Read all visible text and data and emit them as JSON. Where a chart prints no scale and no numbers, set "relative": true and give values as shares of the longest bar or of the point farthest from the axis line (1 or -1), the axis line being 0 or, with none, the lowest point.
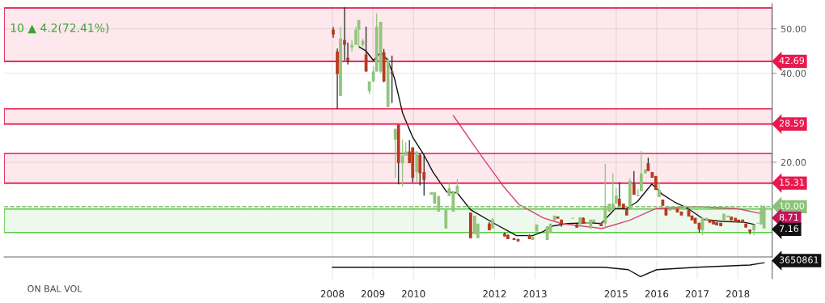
{
  "chart_data": [
    {
      "type": "candlestick",
      "subtitle": "10 ▲ 4.2(72.41%)",
      "x": [
        2008.02,
        2008.12,
        2008.2,
        2008.3,
        2008.38,
        2008.48,
        2008.58,
        2008.65,
        2008.75,
        2008.83,
        2008.91,
        2009.01,
        2009.09,
        2009.19,
        2009.27,
        2009.37,
        2009.47,
        2009.55,
        2009.63,
        2009.73,
        2009.81,
        2009.9,
        2009.98,
        2010.08,
        2010.16,
        2010.26,
        2010.44,
        2010.52,
        2010.62,
        2010.8,
        2010.88,
        2010.98,
        2011.08,
        2011.41,
        2011.51,
        2011.59,
        2011.87,
        2011.95,
        2012.25,
        2012.33,
        2012.48,
        2012.58,
        2012.86,
        2012.94,
        2013.04,
        2013.3,
        2013.38,
        2013.48,
        2013.56,
        2013.65,
        2013.93,
        2014.03,
        2014.11,
        2014.19,
        2014.29,
        2014.37,
        2014.45,
        2014.63,
        2014.73,
        2014.83,
        2014.92,
        2015.0,
        2015.08,
        2015.18,
        2015.26,
        2015.34,
        2015.44,
        2015.54,
        2015.62,
        2015.72,
        2015.79,
        2015.89,
        2015.98,
        2016.06,
        2016.15,
        2016.23,
        2016.33,
        2016.51,
        2016.61,
        2016.69,
        2016.79,
        2016.87,
        2016.95,
        2017.05,
        2017.13,
        2017.23,
        2017.31,
        2017.4,
        2017.48,
        2017.58,
        2017.66,
        2017.76,
        2017.84,
        2017.94,
        2018.02,
        2018.12,
        2018.2,
        2018.3,
        2018.4,
        2018.5,
        2018.58,
        2018.65
      ],
      "ohlc": [
        [
          49.8,
          50.4,
          48,
          48.7
        ],
        [
          44.9,
          45.6,
          32,
          39.8
        ],
        [
          34.9,
          50.5,
          34.9,
          47.8
        ],
        [
          47.5,
          54.9,
          42.9,
          46.4
        ],
        [
          43.5,
          46.9,
          42,
          42.9
        ],
        [
          45.8,
          47.5,
          44.9,
          46.4
        ],
        [
          46.4,
          50.5,
          46.4,
          49.8
        ],
        [
          49.8,
          52,
          45.6,
          52
        ],
        [
          46.4,
          47.8,
          46,
          47.3
        ],
        [
          44.2,
          50.5,
          40.4,
          40.4
        ],
        [
          36,
          38.2,
          35.3,
          38.2
        ],
        [
          38.2,
          41.5,
          38,
          40.4
        ],
        [
          40.4,
          53.5,
          40.4,
          50.5
        ],
        [
          40.4,
          51.6,
          40,
          51.6
        ],
        [
          44.7,
          45.5,
          38,
          38.2
        ],
        [
          32.4,
          43.5,
          32.4,
          42.9
        ],
        [
          40.4,
          44,
          33.3,
          39.8
        ],
        [
          25.1,
          27.5,
          16.5,
          27.5
        ],
        [
          28.4,
          28.4,
          15,
          19.8
        ],
        [
          19.8,
          25.1,
          14.5,
          21.5
        ],
        [
          21.5,
          24.5,
          21.5,
          22.4
        ],
        [
          22.4,
          25,
          19.8,
          19.8
        ],
        [
          23.3,
          23.3,
          15.5,
          16.5
        ],
        [
          17.8,
          22.4,
          15.6,
          22.4
        ],
        [
          21.6,
          22,
          14.8,
          17.5
        ],
        [
          17.8,
          21.6,
          12.5,
          16
        ],
        [
          12.7,
          13.3,
          12.7,
          13.3
        ],
        [
          10.7,
          13.3,
          10.7,
          13.3
        ],
        [
          8.9,
          12.4,
          8.9,
          12.4
        ],
        [
          5.1,
          9.3,
          5.1,
          9.3
        ],
        [
          12.4,
          15.3,
          12.4,
          14.2
        ],
        [
          8.9,
          13.5,
          8.9,
          13.5
        ],
        [
          12.9,
          16.2,
          12.9,
          14.7
        ],
        [
          8.7,
          8.7,
          2.9,
          2.9
        ],
        [
          3.8,
          8,
          3.8,
          8
        ],
        [
          2.9,
          6.2,
          2.9,
          6.2
        ],
        [
          6.2,
          6.5,
          4.7,
          4.7
        ],
        [
          5.1,
          7.5,
          5.1,
          7.1
        ],
        [
          4,
          4.2,
          3.3,
          3.3
        ],
        [
          3.6,
          3.8,
          2.7,
          2.7
        ],
        [
          2.9,
          3,
          2.5,
          2.5
        ],
        [
          2.7,
          2.8,
          2.2,
          2.2
        ],
        [
          3.6,
          3.8,
          2.7,
          2.7
        ],
        [
          2.5,
          3.3,
          2.5,
          3.3
        ],
        [
          4.4,
          6,
          4.4,
          6
        ],
        [
          2.5,
          5.6,
          2.5,
          5.6
        ],
        [
          4.2,
          6.2,
          4.2,
          6.2
        ],
        [
          6.9,
          8,
          6.9,
          8
        ],
        [
          7.8,
          7.8,
          7.3,
          7.3
        ],
        [
          7.1,
          7.1,
          5.5,
          6
        ],
        [
          7.3,
          7.5,
          7.3,
          7.5
        ],
        [
          6,
          6.2,
          5.3,
          5.3
        ],
        [
          6,
          7.6,
          6,
          7.6
        ],
        [
          7.5,
          7.6,
          6.2,
          6.2
        ],
        [
          6.2,
          6.5,
          6.2,
          6.5
        ],
        [
          5.1,
          7.1,
          5.1,
          7.1
        ],
        [
          6.5,
          7.1,
          6.5,
          7.1
        ],
        [
          6.4,
          6.4,
          5.6,
          5.6
        ],
        [
          6.2,
          19.6,
          5.1,
          10.2
        ],
        [
          8.9,
          10.7,
          8.9,
          10.7
        ],
        [
          9.3,
          17.5,
          9.3,
          10.7
        ],
        [
          10.7,
          14.2,
          10.7,
          12.5
        ],
        [
          11.8,
          15.5,
          10.2,
          10.2
        ],
        [
          10.7,
          10.7,
          9.6,
          9.6
        ],
        [
          9.5,
          9.5,
          8,
          8
        ],
        [
          9.3,
          16.4,
          9.3,
          15.8
        ],
        [
          15.1,
          18,
          12.7,
          12.7
        ],
        [
          12.4,
          14,
          12.4,
          12.7
        ],
        [
          13.5,
          22.5,
          13.5,
          17.5
        ],
        [
          17.5,
          18.4,
          17.5,
          18.4
        ],
        [
          19.8,
          21,
          18,
          18
        ],
        [
          17.8,
          17.8,
          16.5,
          16.5
        ],
        [
          16.9,
          16.9,
          13.8,
          13.8
        ],
        [
          12.2,
          15.5,
          12.2,
          13.8
        ],
        [
          11.6,
          11.6,
          10.2,
          10.2
        ],
        [
          9.6,
          9.6,
          8,
          8
        ],
        [
          9.1,
          9.6,
          9.1,
          9.6
        ],
        [
          9.6,
          9.6,
          8.7,
          8.7
        ],
        [
          8.9,
          8.9,
          8,
          8
        ],
        [
          9.3,
          10.2,
          9.3,
          10.2
        ],
        [
          9.3,
          9.3,
          7.8,
          7.8
        ],
        [
          8,
          8,
          6.9,
          6.9
        ],
        [
          7.5,
          7.5,
          6.2,
          6.2
        ],
        [
          6.4,
          6.4,
          4.2,
          4.9
        ],
        [
          4.7,
          7.5,
          3.6,
          7.5
        ],
        [
          6.9,
          7.5,
          6.9,
          7.5
        ],
        [
          7.1,
          7.1,
          6.4,
          6.4
        ],
        [
          6.9,
          6.9,
          6,
          6
        ],
        [
          6.5,
          6.5,
          5.8,
          5.8
        ],
        [
          6.4,
          6.4,
          5.6,
          5.6
        ],
        [
          6.9,
          8.4,
          6.9,
          8.4
        ],
        [
          7.6,
          8,
          7.6,
          8
        ],
        [
          7.8,
          7.8,
          6.9,
          6.9
        ],
        [
          7.5,
          7.5,
          6.5,
          6.5
        ],
        [
          7.1,
          7.1,
          6.7,
          6.7
        ],
        [
          7.1,
          7.1,
          6.4,
          6.4
        ],
        [
          6.2,
          6.2,
          5.3,
          5.3
        ],
        [
          4.9,
          4.9,
          3.8,
          4.4
        ],
        [
          4.7,
          6,
          3.6,
          6
        ],
        [
          6.2,
          6.4,
          6.2,
          6.4
        ],
        [
          6,
          10.4,
          6,
          9.8
        ],
        [
          5.1,
          10.4,
          5.1,
          10
        ]
      ],
      "series": [
        {
          "type": "line",
          "color": "#111111",
          "x": [
            2008.65,
            2008.83,
            2009.01,
            2009.19,
            2009.37,
            2009.53,
            2009.73,
            2009.98,
            2010.26,
            2010.48,
            2010.82,
            2011.08,
            2011.41,
            2012.0,
            2012.54,
            2012.94,
            2013.2,
            2013.4,
            2013.79,
            2014.33,
            2014.63,
            2014.98,
            2015.24,
            2015.52,
            2015.88,
            2016.12,
            2016.43,
            2016.77,
            2017.17,
            2017.62,
            2018.16,
            2018.42
          ],
          "values": [
            46,
            45,
            42.9,
            44.7,
            42.9,
            38.9,
            31.1,
            25.6,
            21.6,
            17.8,
            13.3,
            13.1,
            9.3,
            6.2,
            3.5,
            3.5,
            4.4,
            5.6,
            6.2,
            6.4,
            6.2,
            9.6,
            9.5,
            11.1,
            15.1,
            12.9,
            11.1,
            9.6,
            7.1,
            6.7,
            6.5,
            6.0
          ]
        },
        {
          "type": "line",
          "color": "#d6457a",
          "x": [
            2010.98,
            2011.67,
            2012.21,
            2012.6,
            2013.2,
            2013.65,
            2014.65,
            2015.32,
            2015.98,
            2016.97,
            2017.96,
            2018.61
          ],
          "values": [
            30.5,
            21.5,
            14.7,
            10.5,
            7.5,
            6.2,
            5.1,
            6.9,
            9.6,
            10.0,
            9.6,
            8.4
          ]
        }
      ],
      "xlim": [
        1999.9,
        2018.85
      ],
      "xticks": [
        2008,
        2009,
        2010,
        2012,
        2013,
        2015,
        2016,
        2017,
        2018
      ],
      "ylim": [
        -1.3,
        55.6
      ],
      "yticks": [
        {
          "value": 20,
          "label": "20.00"
        },
        {
          "value": 40,
          "label": "40.00"
        },
        {
          "value": 50,
          "label": "50.00"
        }
      ],
      "ref_lines": [
        {
          "axis": "y",
          "value": 42.69,
          "label": "42.69",
          "color": "#e8194f"
        },
        {
          "axis": "y",
          "value": 28.59,
          "label": "28.59",
          "color": "#e8194f"
        },
        {
          "axis": "y",
          "value": 15.31,
          "label": "15.31",
          "color": "#e8194f"
        },
        {
          "axis": "y",
          "value": 10,
          "label": "10.00",
          "color": "#8cc17a",
          "line_style": "dashed"
        }
      ],
      "bands": [
        {
          "axis": "y",
          "from": 42.69,
          "to": 54.7,
          "color": "#e8194f"
        },
        {
          "axis": "y",
          "from": 28.59,
          "to": 32,
          "color": "#e8194f"
        },
        {
          "axis": "y",
          "from": 15.31,
          "to": 22,
          "color": "#e8194f"
        },
        {
          "axis": "y",
          "from": 4.2,
          "to": 9.5,
          "color": "#5cc94a"
        }
      ],
      "annotations": [
        "8.71",
        "7.16"
      ],
      "grid": true,
      "tick_labels": "y"
    },
    {
      "type": "line",
      "title": "ON BAL VOL",
      "relative": true,
      "x": [
        2008,
        2010,
        2014.7,
        2015.3,
        2015.6,
        2016.0,
        2017,
        2018.3,
        2018.65
      ],
      "values": [
        0.67,
        0.67,
        0.67,
        0.5,
        0,
        0.5,
        0.67,
        0.83,
        1
      ],
      "color": "#111111",
      "xlim": [
        1999.9,
        2018.85
      ],
      "xticks": [
        2008,
        2009,
        2010,
        2012,
        2013,
        2015,
        2016,
        2017,
        2018
      ],
      "annotations": [
        "3650861"
      ],
      "grid": "x",
      "tick_labels": "x"
    }
  ]
}
